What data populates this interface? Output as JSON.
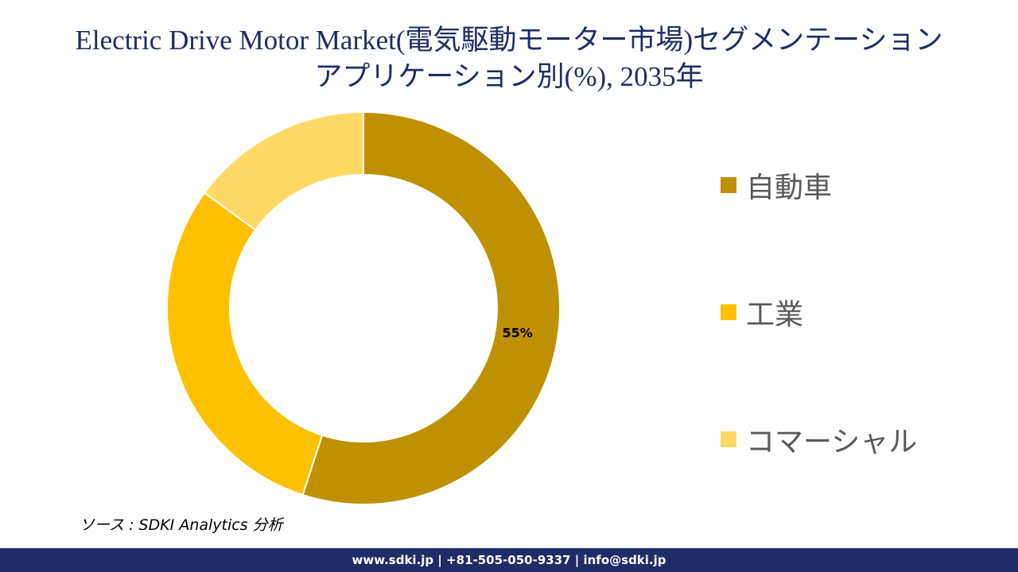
{
  "title": {
    "line1": "Electric Drive Motor Market(電気駆動モーター市場)セグメンテーション",
    "line2": "アプリケーション別(%), 2035年"
  },
  "chart_data": {
    "type": "pie",
    "variant": "donut",
    "categories": [
      "自動車",
      "工業",
      "コマーシャル"
    ],
    "values": [
      55,
      30,
      15
    ],
    "data_labels": [
      "55%",
      "",
      ""
    ],
    "colors": [
      "#bf9000",
      "#ffc000",
      "#ffd966"
    ],
    "legend_position": "right"
  },
  "legend": {
    "items": [
      {
        "label": "自動車",
        "color": "#bf9000"
      },
      {
        "label": "工業",
        "color": "#ffc000"
      },
      {
        "label": "コマーシャル",
        "color": "#ffd966"
      }
    ]
  },
  "source_text": "ソース : SDKI Analytics 分析",
  "footer": {
    "contact": "www.sdki.jp | +81-505-050-9337 | info@sdki.jp"
  }
}
